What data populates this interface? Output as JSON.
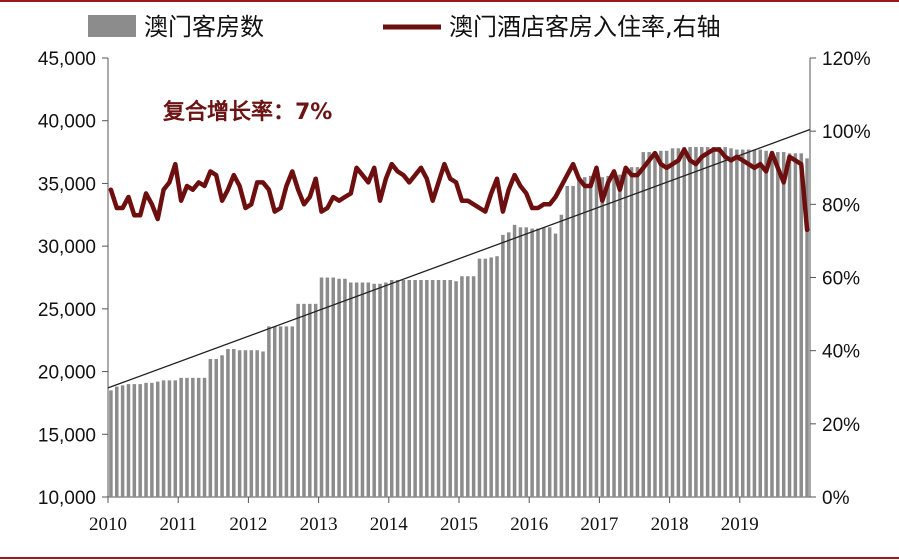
{
  "chart_data": {
    "type": "bar",
    "legend": {
      "placement": "top",
      "items": [
        {
          "label": "澳门客房数",
          "color": "#8c8c8c",
          "kind": "bar"
        },
        {
          "label": "澳门酒店客房入住率,右轴",
          "color": "#6e0f0f",
          "kind": "line"
        }
      ]
    },
    "annotation": "复合增长率：7%",
    "x": {
      "ticks": [
        "2010",
        "2011",
        "2012",
        "2013",
        "2014",
        "2015",
        "2016",
        "2017",
        "2018",
        "2019"
      ],
      "start_year": 2010,
      "end_year": 2020
    },
    "y_left": {
      "min": 10000,
      "max": 45000,
      "ticks": [
        "10,000",
        "15,000",
        "20,000",
        "25,000",
        "30,000",
        "35,000",
        "40,000",
        "45,000"
      ]
    },
    "y_right": {
      "min": 0,
      "max": 120,
      "ticks": [
        "0%",
        "20%",
        "40%",
        "60%",
        "80%",
        "100%",
        "120%"
      ]
    },
    "grid": false,
    "series": [
      {
        "name": "澳门客房数",
        "type": "bar",
        "axis": "left",
        "color": "#8c8c8c",
        "values": [
          18500,
          18800,
          18900,
          19000,
          19000,
          19000,
          19100,
          19100,
          19200,
          19300,
          19300,
          19300,
          19500,
          19500,
          19500,
          19500,
          19500,
          21000,
          21000,
          21300,
          21800,
          21800,
          21700,
          21700,
          21700,
          21700,
          21600,
          23600,
          23600,
          23600,
          23600,
          23600,
          25400,
          25400,
          25400,
          25400,
          27500,
          27500,
          27500,
          27400,
          27400,
          27100,
          27100,
          27100,
          27100,
          27000,
          27000,
          27100,
          27300,
          27300,
          27300,
          27300,
          27300,
          27300,
          27300,
          27300,
          27300,
          27300,
          27300,
          27200,
          27600,
          27600,
          27600,
          29000,
          29000,
          29100,
          29200,
          30900,
          31100,
          31700,
          31500,
          31500,
          31400,
          31400,
          31500,
          31500,
          31000,
          32500,
          34800,
          34800,
          35500,
          35500,
          35600,
          35500,
          35500,
          35600,
          35700,
          35700,
          36200,
          36300,
          36300,
          37500,
          37500,
          37400,
          37600,
          37600,
          37800,
          37800,
          37900,
          37900,
          37900,
          37900,
          37900,
          37900,
          37900,
          37900,
          37800,
          37700,
          37700,
          37700,
          37700,
          37700,
          37600,
          37600,
          37500,
          37500,
          37400,
          37400,
          37400,
          37000
        ]
      },
      {
        "name": "澳门酒店客房入住率,右轴",
        "type": "line",
        "axis": "right",
        "color": "#6e0f0f",
        "values": [
          84,
          79,
          79,
          82,
          77,
          77,
          83,
          80,
          76,
          84,
          86,
          91,
          81,
          85,
          84,
          86,
          85,
          89,
          88,
          81,
          84,
          88,
          85,
          79,
          80,
          86,
          86,
          84,
          78,
          79,
          85,
          89,
          84,
          80,
          82,
          87,
          78,
          79,
          82,
          81,
          82,
          83,
          90,
          88,
          86,
          90,
          81,
          87,
          91,
          89,
          88,
          86,
          88,
          90,
          87,
          81,
          86,
          91,
          87,
          86,
          81,
          81,
          80,
          79,
          78,
          83,
          87,
          78,
          84,
          88,
          85,
          83,
          79,
          79,
          80,
          80,
          82,
          85,
          88,
          91,
          87,
          85,
          85,
          90,
          81,
          86,
          89,
          84,
          90,
          88,
          88,
          90,
          92,
          94,
          91,
          90,
          91,
          92,
          95,
          92,
          91,
          93,
          94,
          95,
          95,
          93,
          92,
          93,
          92,
          91,
          90,
          91,
          89,
          94,
          90,
          86,
          93,
          92,
          91,
          73
        ]
      }
    ],
    "trendline": {
      "start_value": 18700,
      "end_value": 39300
    }
  }
}
